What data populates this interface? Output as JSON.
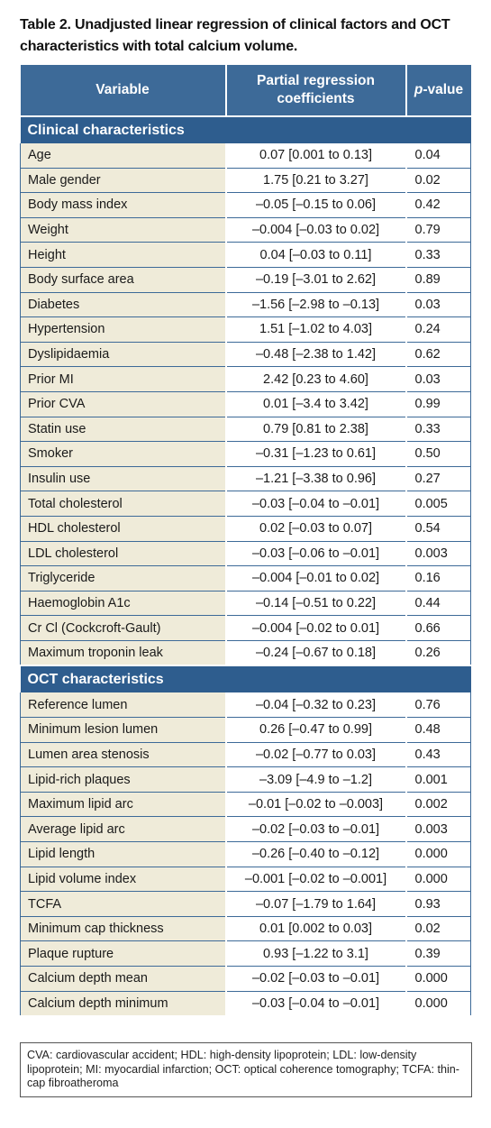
{
  "caption": "Table 2. Unadjusted linear regression of clinical factors and OCT characteristics with total calcium volume.",
  "header": {
    "variable": "Variable",
    "coefficients_line1": "Partial regression",
    "coefficients_line2": "coefficients",
    "p_italic": "p",
    "p_rest": "-value"
  },
  "sections": [
    {
      "title": "Clinical characteristics",
      "rows": [
        {
          "variable": "Age",
          "coef": "0.07 [0.001 to 0.13]",
          "p": "0.04"
        },
        {
          "variable": "Male gender",
          "coef": "1.75 [0.21 to 3.27]",
          "p": "0.02"
        },
        {
          "variable": "Body mass index",
          "coef": "–0.05 [–0.15 to 0.06]",
          "p": "0.42"
        },
        {
          "variable": "Weight",
          "coef": "–0.004 [–0.03 to 0.02]",
          "p": "0.79"
        },
        {
          "variable": "Height",
          "coef": "0.04 [–0.03 to 0.11]",
          "p": "0.33"
        },
        {
          "variable": "Body surface area",
          "coef": "–0.19 [–3.01 to 2.62]",
          "p": "0.89"
        },
        {
          "variable": "Diabetes",
          "coef": "–1.56 [–2.98 to –0.13]",
          "p": "0.03"
        },
        {
          "variable": "Hypertension",
          "coef": "1.51 [–1.02 to 4.03]",
          "p": "0.24"
        },
        {
          "variable": "Dyslipidaemia",
          "coef": "–0.48 [–2.38 to 1.42]",
          "p": "0.62"
        },
        {
          "variable": "Prior MI",
          "coef": "2.42 [0.23 to 4.60]",
          "p": "0.03"
        },
        {
          "variable": "Prior CVA",
          "coef": "0.01 [–3.4 to 3.42]",
          "p": "0.99"
        },
        {
          "variable": "Statin use",
          "coef": "0.79 [0.81 to 2.38]",
          "p": "0.33"
        },
        {
          "variable": "Smoker",
          "coef": "–0.31 [–1.23 to 0.61]",
          "p": "0.50"
        },
        {
          "variable": "Insulin use",
          "coef": "–1.21 [–3.38 to 0.96]",
          "p": "0.27"
        },
        {
          "variable": "Total cholesterol",
          "coef": "–0.03 [–0.04 to –0.01]",
          "p": "0.005"
        },
        {
          "variable": "HDL cholesterol",
          "coef": "0.02 [–0.03 to 0.07]",
          "p": "0.54"
        },
        {
          "variable": "LDL cholesterol",
          "coef": "–0.03 [–0.06 to –0.01]",
          "p": "0.003"
        },
        {
          "variable": "Triglyceride",
          "coef": "–0.004 [–0.01 to 0.02]",
          "p": "0.16"
        },
        {
          "variable": "Haemoglobin A1c",
          "coef": "–0.14 [–0.51 to 0.22]",
          "p": "0.44"
        },
        {
          "variable": "Cr Cl (Cockcroft-Gault)",
          "coef": "–0.004 [–0.02 to 0.01]",
          "p": "0.66"
        },
        {
          "variable": "Maximum troponin leak",
          "coef": "–0.24 [–0.67 to 0.18]",
          "p": "0.26"
        }
      ]
    },
    {
      "title": "OCT characteristics",
      "rows": [
        {
          "variable": "Reference lumen",
          "coef": "–0.04 [–0.32 to 0.23]",
          "p": "0.76"
        },
        {
          "variable": "Minimum lesion lumen",
          "coef": "0.26 [–0.47 to 0.99]",
          "p": "0.48"
        },
        {
          "variable": "Lumen area stenosis",
          "coef": "–0.02 [–0.77 to 0.03]",
          "p": "0.43"
        },
        {
          "variable": "Lipid-rich plaques",
          "coef": "–3.09 [–4.9 to –1.2]",
          "p": "0.001"
        },
        {
          "variable": "Maximum lipid arc",
          "coef": "–0.01 [–0.02 to –0.003]",
          "p": "0.002"
        },
        {
          "variable": "Average lipid arc",
          "coef": "–0.02 [–0.03 to –0.01]",
          "p": "0.003"
        },
        {
          "variable": "Lipid length",
          "coef": "–0.26 [–0.40 to –0.12]",
          "p": "0.000"
        },
        {
          "variable": "Lipid volume index",
          "coef": "–0.001 [–0.02 to –0.001]",
          "p": "0.000"
        },
        {
          "variable": "TCFA",
          "coef": "–0.07 [–1.79 to 1.64]",
          "p": "0.93"
        },
        {
          "variable": "Minimum cap thickness",
          "coef": "0.01 [0.002 to 0.03]",
          "p": "0.02"
        },
        {
          "variable": "Plaque rupture",
          "coef": "0.93 [–1.22 to 3.1]",
          "p": "0.39"
        },
        {
          "variable": "Calcium depth mean",
          "coef": "–0.02 [–0.03 to –0.01]",
          "p": "0.000"
        },
        {
          "variable": "Calcium depth minimum",
          "coef": "–0.03 [–0.04 to –0.01]",
          "p": "0.000"
        }
      ]
    }
  ],
  "footnote": "CVA: cardiovascular accident; HDL: high-density lipoprotein; LDL: low-density lipoprotein; MI: myocardial infarction; OCT: optical coherence tomography; TCFA: thin-cap fibroatheroma",
  "colors": {
    "header_bg": "#3d6a98",
    "section_bg": "#2e5d8e",
    "row_label_bg": "#efebd9",
    "border": "#3d6a98"
  }
}
